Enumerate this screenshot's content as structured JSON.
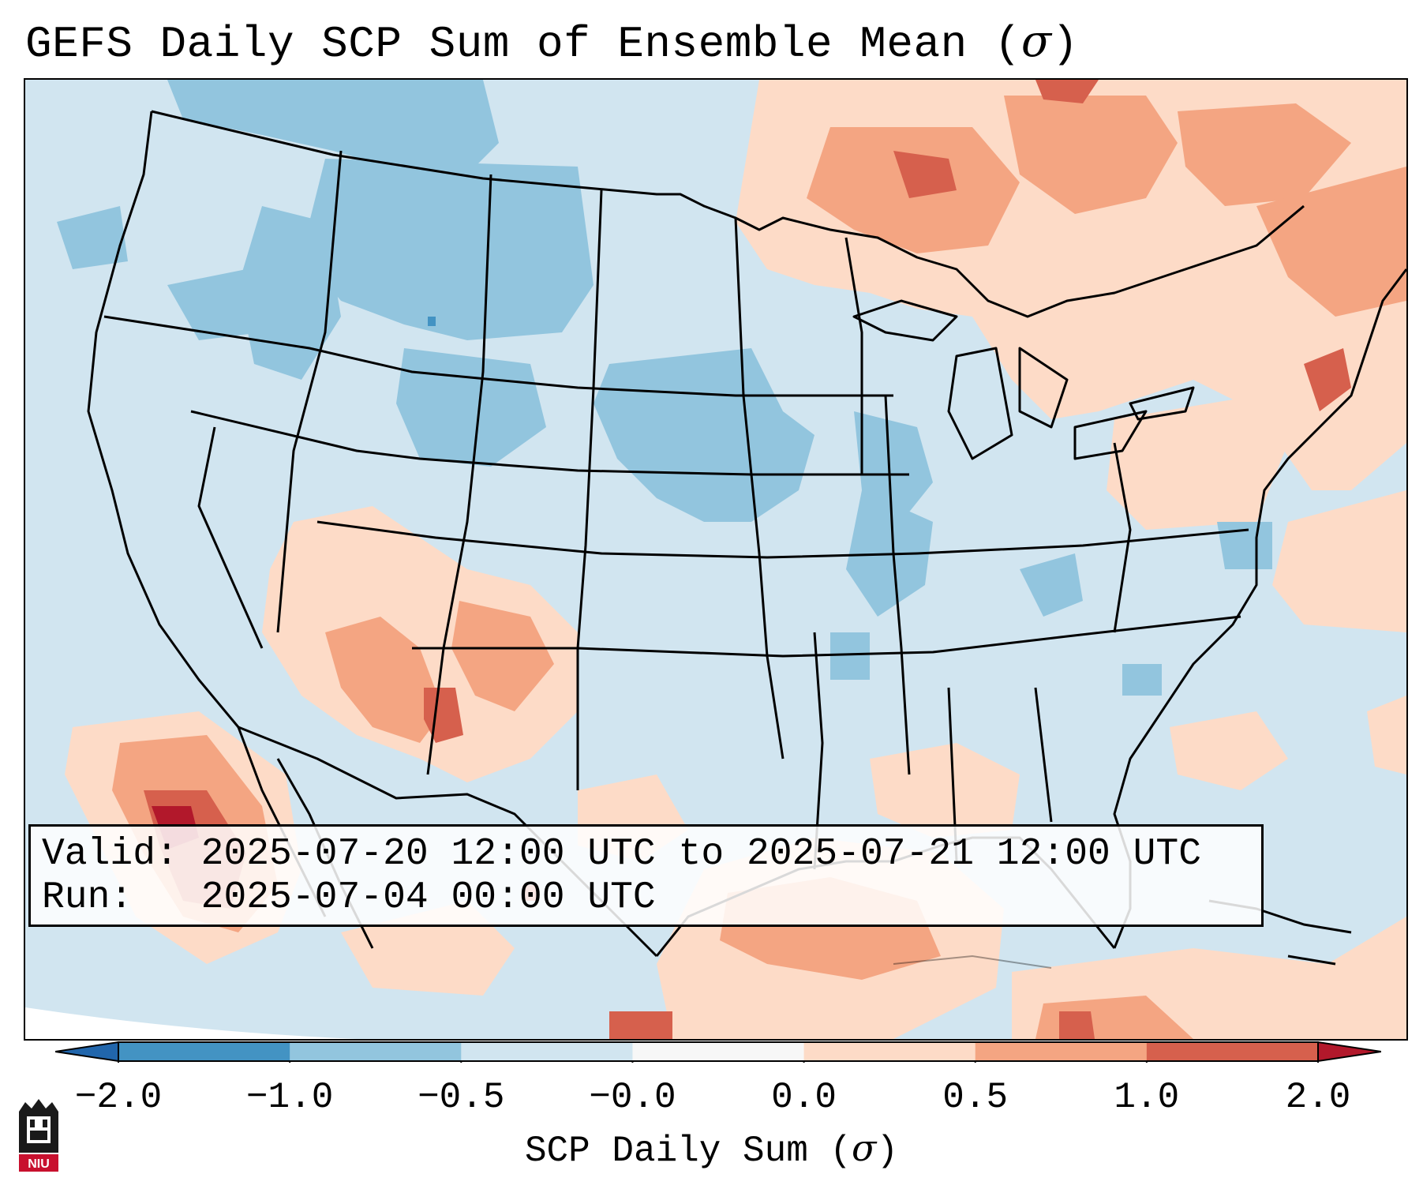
{
  "title": {
    "text": "GEFS Daily SCP Sum of Ensemble Mean (",
    "symbol": "σ",
    "close": ")"
  },
  "info": {
    "valid_line": "Valid: 2025-07-20 12:00 UTC to 2025-07-21 12:00 UTC",
    "run_line": "Run:   2025-07-04 00:00 UTC"
  },
  "colorbar": {
    "label_prefix": "SCP Daily Sum (",
    "label_symbol": "σ",
    "label_suffix": ")",
    "ticks": [
      "−2.0",
      "−1.0",
      "−0.5",
      "−0.0",
      "0.0",
      "0.5",
      "1.0",
      "2.0"
    ],
    "segments": [
      {
        "from": "−2.0",
        "to": "−1.0",
        "color": "#4393c3"
      },
      {
        "from": "−1.0",
        "to": "−0.5",
        "color": "#92c5de"
      },
      {
        "from": "−0.5",
        "to": "−0.0",
        "color": "#d1e5f0"
      },
      {
        "from": "−0.0",
        "to": "0.0",
        "color": "#f7f7f7"
      },
      {
        "from": "0.0",
        "to": "0.5",
        "color": "#fddbc7"
      },
      {
        "from": "0.5",
        "to": "1.0",
        "color": "#f4a582"
      },
      {
        "from": "1.0",
        "to": "2.0",
        "color": "#d6604d"
      }
    ],
    "under_color": "#2166ac",
    "over_color": "#b2182b"
  },
  "logo": {
    "text": "NIU"
  }
}
